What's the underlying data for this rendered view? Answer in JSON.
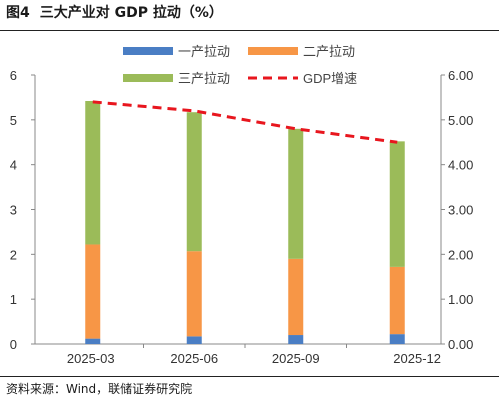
{
  "figure": {
    "number": "图4",
    "title": "三大产业对 GDP 拉动（%）"
  },
  "source": "资料来源：Wind，联储证券研究院",
  "chart_data": {
    "type": "bar",
    "stacked": true,
    "categories": [
      "2025-03",
      "2025-06",
      "2025-09",
      "2025-12"
    ],
    "series": [
      {
        "name": "一产拉动",
        "type": "bar",
        "color": "#4a7ec4",
        "values": [
          0.12,
          0.17,
          0.2,
          0.22
        ]
      },
      {
        "name": "二产拉动",
        "type": "bar",
        "color": "#f79646",
        "values": [
          2.1,
          1.9,
          1.7,
          1.5
        ]
      },
      {
        "name": "三产拉动",
        "type": "bar",
        "color": "#9bbb59",
        "values": [
          3.2,
          3.1,
          2.9,
          2.8
        ]
      },
      {
        "name": "GDP增速",
        "type": "line",
        "axis": "right",
        "color": "#e8161e",
        "dashed": true,
        "values": [
          5.4,
          5.2,
          4.8,
          4.5
        ]
      }
    ],
    "y_left": {
      "min": 0,
      "max": 6,
      "ticks": [
        "0",
        "1",
        "2",
        "3",
        "4",
        "5",
        "6"
      ]
    },
    "y_right": {
      "min": 0,
      "max": 6,
      "ticks": [
        "0.00",
        "1.00",
        "2.00",
        "3.00",
        "4.00",
        "5.00",
        "6.00"
      ]
    },
    "grid": false,
    "legend": "top"
  }
}
